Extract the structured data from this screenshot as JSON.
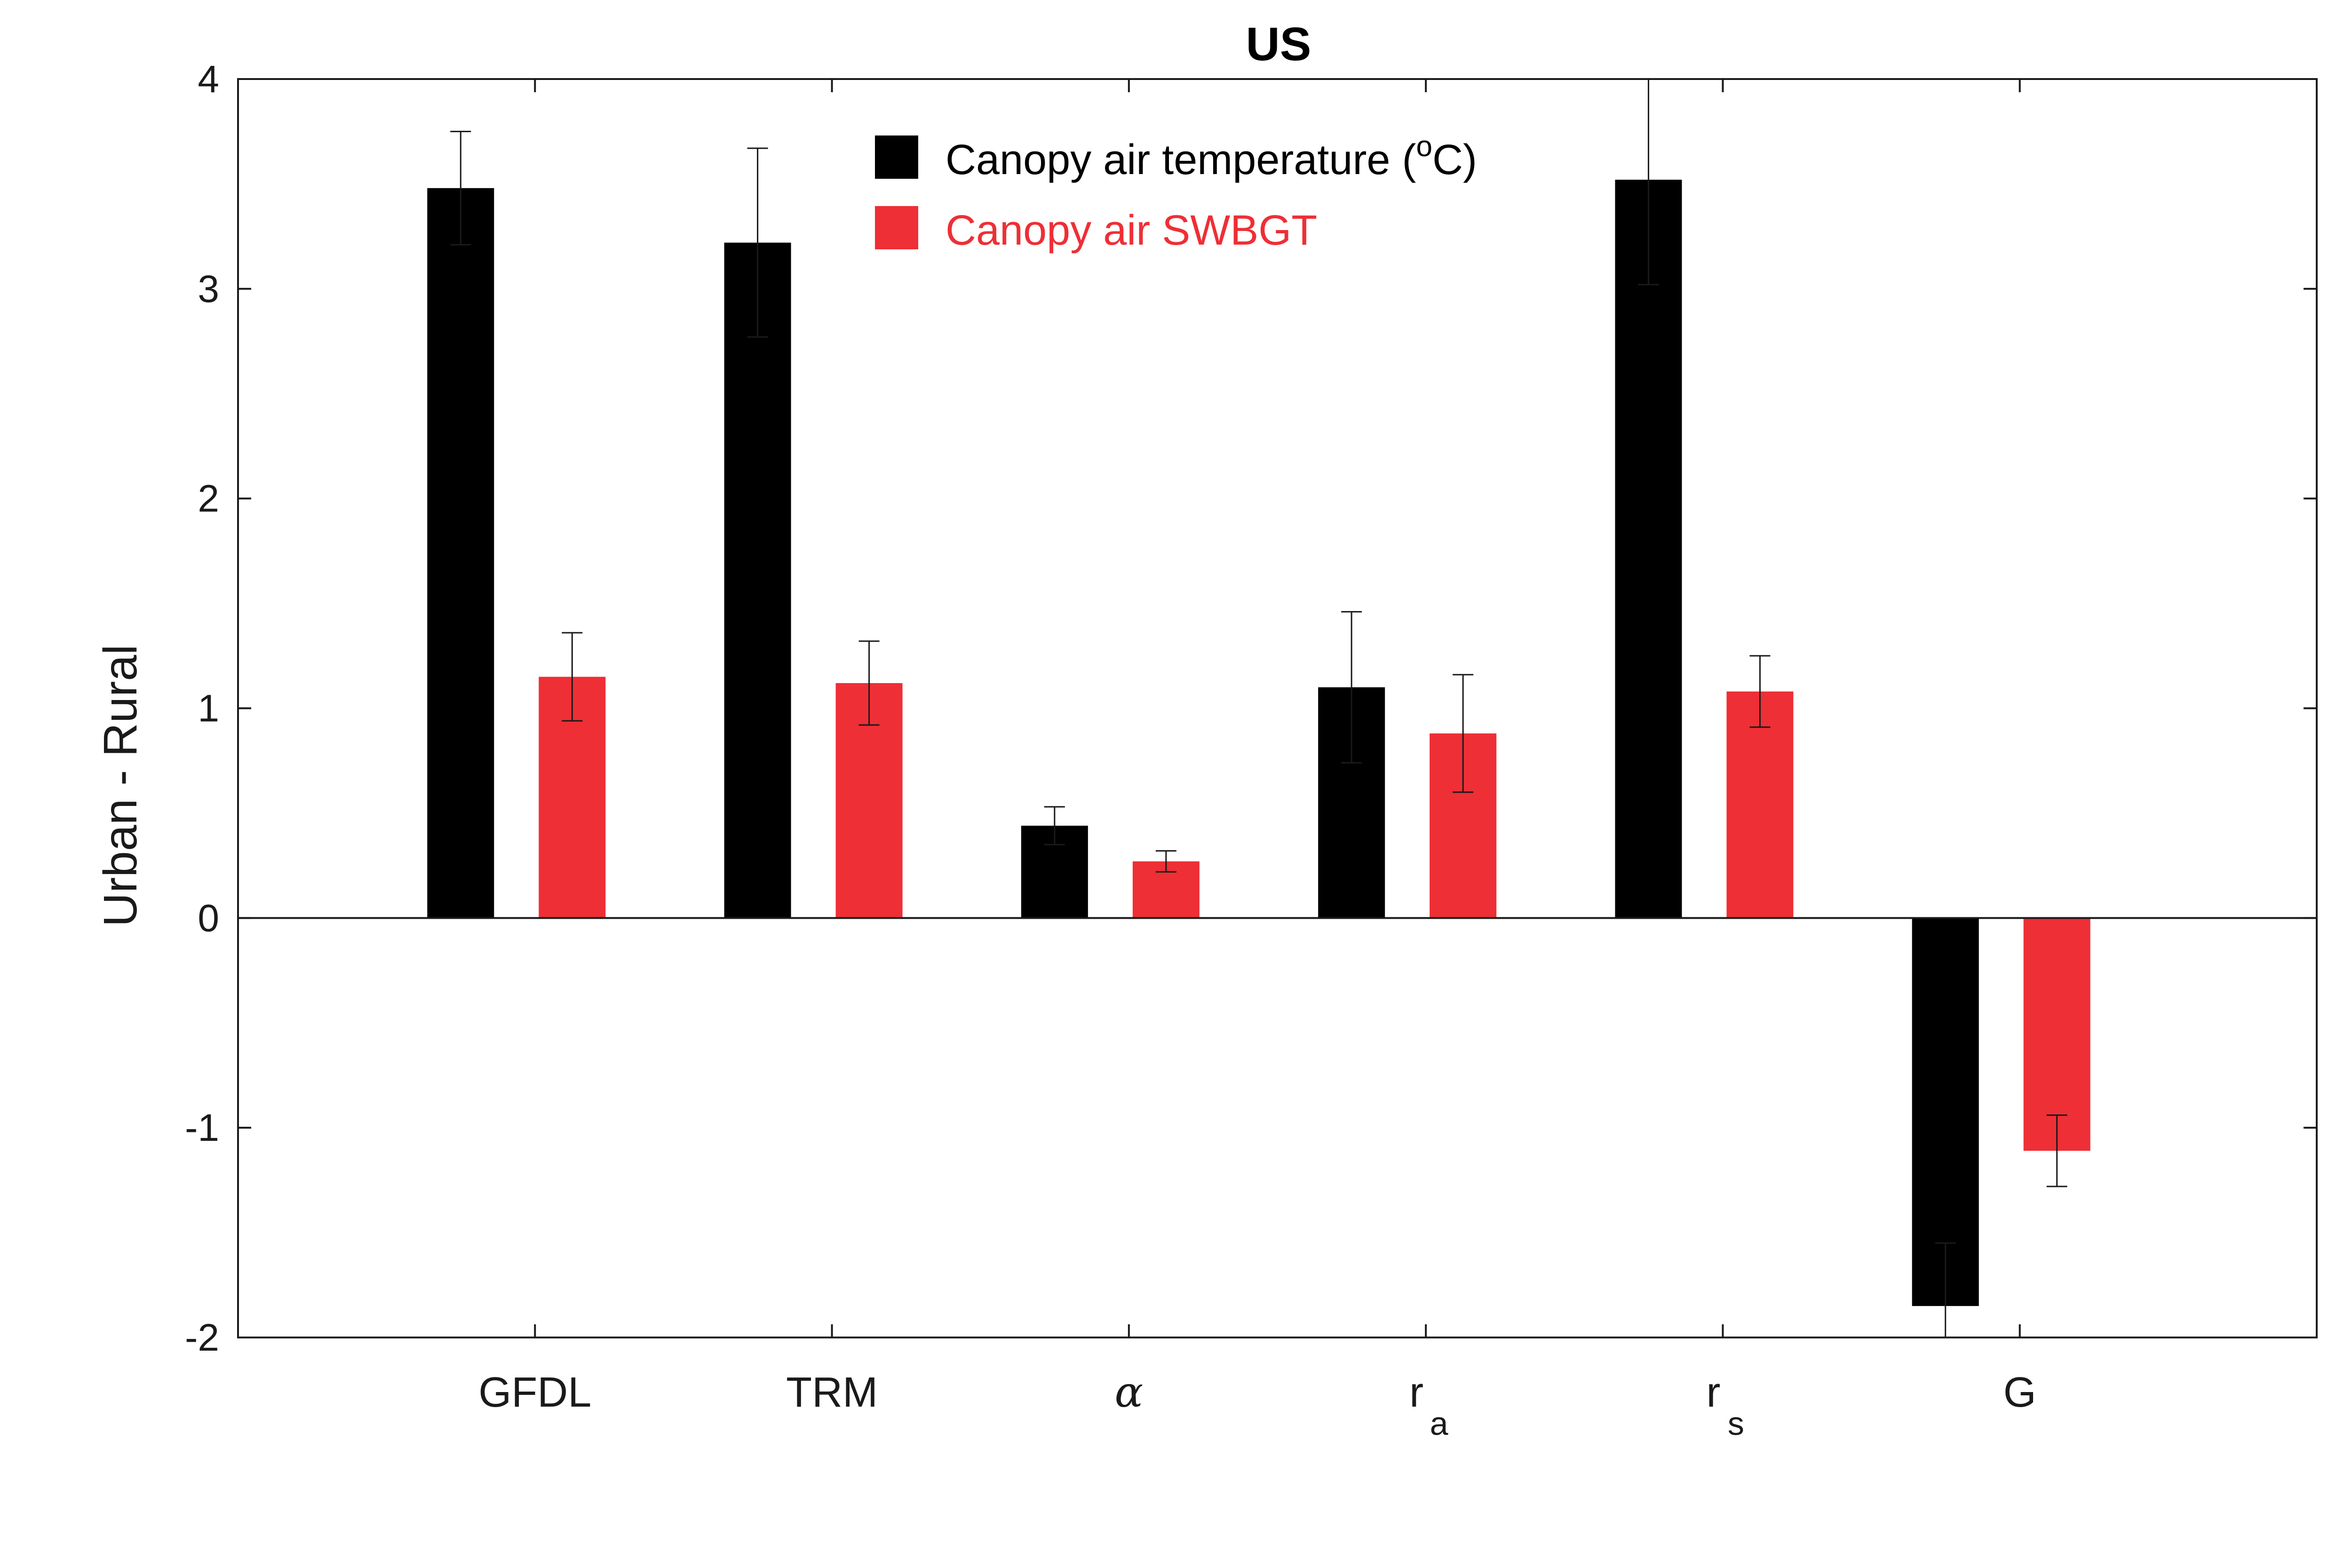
{
  "chart_data": {
    "type": "bar",
    "title": "US",
    "xlabel": "",
    "ylabel": "Urban - Rural",
    "ylim": [
      -2,
      4
    ],
    "yticks": [
      "-2",
      "-1",
      "0",
      "1",
      "2",
      "3",
      "4"
    ],
    "grid": false,
    "legend_position": "top-center",
    "categories": [
      {
        "main": "GFDL",
        "sub": ""
      },
      {
        "main": "TRM",
        "sub": ""
      },
      {
        "main": "α",
        "sub": ""
      },
      {
        "main": "r",
        "sub": "a"
      },
      {
        "main": "r",
        "sub": "s"
      },
      {
        "main": "G",
        "sub": ""
      }
    ],
    "series": [
      {
        "name": "Canopy air temperature (",
        "name_sup": "o",
        "name_tail": "C)",
        "color": "#000000",
        "values": [
          3.48,
          3.22,
          0.44,
          1.1,
          3.52,
          -1.85
        ],
        "errors": [
          0.27,
          0.45,
          0.09,
          0.36,
          0.5,
          0.3
        ]
      },
      {
        "name": "Canopy air SWBGT",
        "color": "#ee2f36",
        "values": [
          1.15,
          1.12,
          0.27,
          0.88,
          1.08,
          -1.11
        ],
        "errors": [
          0.21,
          0.2,
          0.05,
          0.28,
          0.17,
          0.17
        ]
      }
    ]
  }
}
